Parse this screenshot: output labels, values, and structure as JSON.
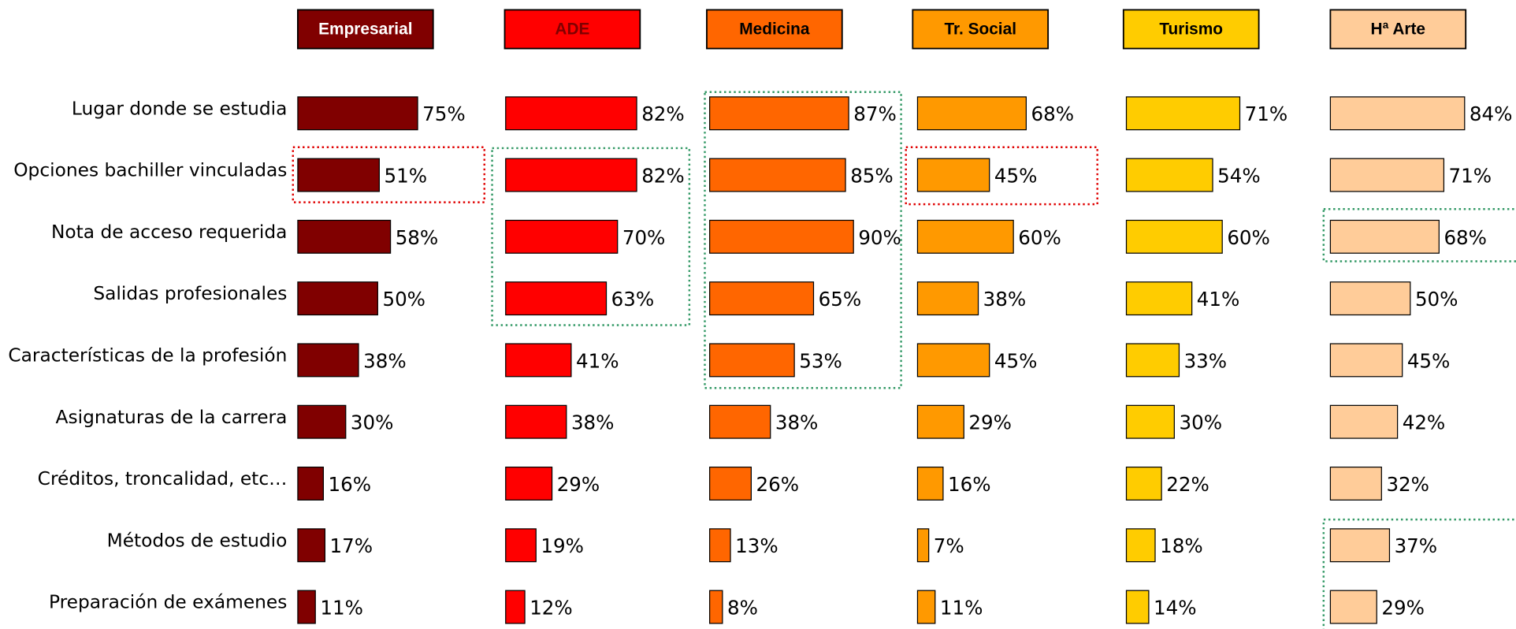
{
  "chart_data": {
    "type": "bar",
    "orientation": "horizontal",
    "categories": [
      "Lugar donde se estudia",
      "Opciones bachiller vinculadas",
      "Nota de acceso requerida",
      "Salidas profesionales",
      "Características de la profesión",
      "Asignaturas de la carrera",
      "Créditos, troncalidad, etc…",
      "Métodos de estudio",
      "Preparación de exámenes"
    ],
    "series": [
      {
        "name": "Empresarial",
        "color": "#800000",
        "values": [
          75,
          51,
          58,
          50,
          38,
          30,
          16,
          17,
          11
        ],
        "value_labels": [
          "75%",
          "51%",
          "58%",
          "50%",
          "38%",
          "30%",
          "16%",
          "17%",
          "11%"
        ]
      },
      {
        "name": "ADE",
        "color": "#ff0000",
        "values": [
          82,
          82,
          70,
          63,
          41,
          38,
          29,
          19,
          12
        ],
        "value_labels": [
          "82%",
          "82%",
          "70%",
          "63%",
          "41%",
          "38%",
          "29%",
          "19%",
          "12%"
        ]
      },
      {
        "name": "Medicina",
        "color": "#ff6600",
        "values": [
          87,
          85,
          90,
          65,
          53,
          38,
          26,
          13,
          8
        ],
        "value_labels": [
          "87%",
          "85%",
          "90%",
          "65%",
          "53%",
          "38%",
          "26%",
          "13%",
          "8%"
        ]
      },
      {
        "name": "Tr. Social",
        "color": "#ff9900",
        "values": [
          68,
          45,
          60,
          38,
          45,
          29,
          16,
          7,
          11
        ],
        "value_labels": [
          "68%",
          "45%",
          "60%",
          "38%",
          "45%",
          "29%",
          "16%",
          "7%",
          "11%"
        ]
      },
      {
        "name": "Turismo",
        "color": "#ffcc00",
        "values": [
          71,
          54,
          60,
          41,
          33,
          30,
          22,
          18,
          14
        ],
        "value_labels": [
          "71%",
          "54%",
          "60%",
          "41%",
          "33%",
          "30%",
          "22%",
          "18%",
          "14%"
        ]
      },
      {
        "name": "Hª Arte",
        "color": "#ffcc99",
        "values": [
          84,
          71,
          68,
          50,
          45,
          42,
          32,
          37,
          29
        ],
        "value_labels": [
          "84%",
          "71%",
          "68%",
          "50%",
          "45%",
          "42%",
          "32%",
          "37%",
          "29%"
        ]
      }
    ]
  }
}
